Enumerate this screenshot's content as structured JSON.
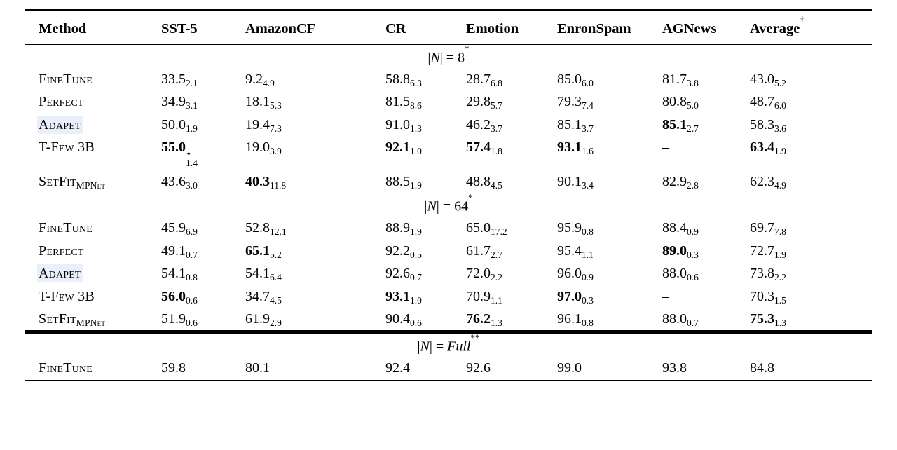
{
  "page": {
    "background": "#ffffff",
    "text_color": "#000000",
    "link_highlight_color": "#e9effb"
  },
  "table": {
    "columns": [
      {
        "label": "Method",
        "sup": ""
      },
      {
        "label": "SST-5",
        "sup": ""
      },
      {
        "label": "AmazonCF",
        "sup": ""
      },
      {
        "label": "CR",
        "sup": ""
      },
      {
        "label": "Emotion",
        "sup": ""
      },
      {
        "label": "EnronSpam",
        "sup": ""
      },
      {
        "label": "AGNews",
        "sup": ""
      },
      {
        "label": "Average",
        "sup": "†"
      }
    ],
    "sections": [
      {
        "header": {
          "open": "|",
          "symbol": "N",
          "close": "| = ",
          "value": "8",
          "value_italic": false,
          "sup": "*"
        },
        "rows": [
          {
            "method": {
              "name": "FineTune",
              "sub": "",
              "highlight": false
            },
            "cells": [
              {
                "v": "33.5",
                "sub": "2.1",
                "b": false
              },
              {
                "v": "9.2",
                "sub": "4.9",
                "b": false
              },
              {
                "v": "58.8",
                "sub": "6.3",
                "b": false
              },
              {
                "v": "28.7",
                "sub": "6.8",
                "b": false
              },
              {
                "v": "85.0",
                "sub": "6.0",
                "b": false
              },
              {
                "v": "81.7",
                "sub": "3.8",
                "b": false
              },
              {
                "v": "43.0",
                "sub": "5.2",
                "b": false
              }
            ]
          },
          {
            "method": {
              "name": "Perfect",
              "sub": "",
              "highlight": false
            },
            "cells": [
              {
                "v": "34.9",
                "sub": "3.1",
                "b": false
              },
              {
                "v": "18.1",
                "sub": "5.3",
                "b": false
              },
              {
                "v": "81.5",
                "sub": "8.6",
                "b": false
              },
              {
                "v": "29.8",
                "sub": "5.7",
                "b": false
              },
              {
                "v": "79.3",
                "sub": "7.4",
                "b": false
              },
              {
                "v": "80.8",
                "sub": "5.0",
                "b": false
              },
              {
                "v": "48.7",
                "sub": "6.0",
                "b": false
              }
            ]
          },
          {
            "method": {
              "name": "Adapet",
              "sub": "",
              "highlight": true
            },
            "cells": [
              {
                "v": "50.0",
                "sub": "1.9",
                "b": false
              },
              {
                "v": "19.4",
                "sub": "7.3",
                "b": false
              },
              {
                "v": "91.0",
                "sub": "1.3",
                "b": false
              },
              {
                "v": "46.2",
                "sub": "3.7",
                "b": false
              },
              {
                "v": "85.1",
                "sub": "3.7",
                "b": false
              },
              {
                "v": "85.1",
                "sub": "2.7",
                "b": true
              },
              {
                "v": "58.3",
                "sub": "3.6",
                "b": false
              }
            ]
          },
          {
            "method": {
              "name": "T-Few 3B",
              "sub": "",
              "highlight": false
            },
            "cells": [
              {
                "v": "55.0",
                "sub": "1.4",
                "sup": "⋆",
                "b": true
              },
              {
                "v": "19.0",
                "sub": "3.9",
                "b": false
              },
              {
                "v": "92.1",
                "sub": "1.0",
                "b": true
              },
              {
                "v": "57.4",
                "sub": "1.8",
                "b": true
              },
              {
                "v": "93.1",
                "sub": "1.6",
                "b": true
              },
              {
                "v": "–",
                "sub": "",
                "b": false
              },
              {
                "v": "63.4",
                "sub": "1.9",
                "b": true
              }
            ]
          },
          {
            "method": {
              "name": "SetFit",
              "sub": "MPNet",
              "highlight": false
            },
            "cells": [
              {
                "v": "43.6",
                "sub": "3.0",
                "b": false
              },
              {
                "v": "40.3",
                "sub": "11.8",
                "b": true
              },
              {
                "v": "88.5",
                "sub": "1.9",
                "b": false
              },
              {
                "v": "48.8",
                "sub": "4.5",
                "b": false
              },
              {
                "v": "90.1",
                "sub": "3.4",
                "b": false
              },
              {
                "v": "82.9",
                "sub": "2.8",
                "b": false
              },
              {
                "v": "62.3",
                "sub": "4.9",
                "b": false
              }
            ]
          }
        ]
      },
      {
        "header": {
          "open": "|",
          "symbol": "N",
          "close": "| = ",
          "value": "64",
          "value_italic": false,
          "sup": "*"
        },
        "rows": [
          {
            "method": {
              "name": "FineTune",
              "sub": "",
              "highlight": false
            },
            "cells": [
              {
                "v": "45.9",
                "sub": "6.9",
                "b": false
              },
              {
                "v": "52.8",
                "sub": "12.1",
                "b": false
              },
              {
                "v": "88.9",
                "sub": "1.9",
                "b": false
              },
              {
                "v": "65.0",
                "sub": "17.2",
                "b": false
              },
              {
                "v": "95.9",
                "sub": "0.8",
                "b": false
              },
              {
                "v": "88.4",
                "sub": "0.9",
                "b": false
              },
              {
                "v": "69.7",
                "sub": "7.8",
                "b": false
              }
            ]
          },
          {
            "method": {
              "name": "Perfect",
              "sub": "",
              "highlight": false
            },
            "cells": [
              {
                "v": "49.1",
                "sub": "0.7",
                "b": false
              },
              {
                "v": "65.1",
                "sub": "5.2",
                "b": true
              },
              {
                "v": "92.2",
                "sub": "0.5",
                "b": false
              },
              {
                "v": "61.7",
                "sub": "2.7",
                "b": false
              },
              {
                "v": "95.4",
                "sub": "1.1",
                "b": false
              },
              {
                "v": "89.0",
                "sub": "0.3",
                "b": true
              },
              {
                "v": "72.7",
                "sub": "1.9",
                "b": false
              }
            ]
          },
          {
            "method": {
              "name": "Adapet",
              "sub": "",
              "highlight": true
            },
            "cells": [
              {
                "v": "54.1",
                "sub": "0.8",
                "b": false
              },
              {
                "v": "54.1",
                "sub": "6.4",
                "b": false
              },
              {
                "v": "92.6",
                "sub": "0.7",
                "b": false
              },
              {
                "v": "72.0",
                "sub": "2.2",
                "b": false
              },
              {
                "v": "96.0",
                "sub": "0.9",
                "b": false
              },
              {
                "v": "88.0",
                "sub": "0.6",
                "b": false
              },
              {
                "v": "73.8",
                "sub": "2.2",
                "b": false
              }
            ]
          },
          {
            "method": {
              "name": "T-Few 3B",
              "sub": "",
              "highlight": false
            },
            "cells": [
              {
                "v": "56.0",
                "sub": "0.6",
                "b": true
              },
              {
                "v": "34.7",
                "sub": "4.5",
                "b": false
              },
              {
                "v": "93.1",
                "sub": "1.0",
                "b": true
              },
              {
                "v": "70.9",
                "sub": "1.1",
                "b": false
              },
              {
                "v": "97.0",
                "sub": "0.3",
                "b": true
              },
              {
                "v": "–",
                "sub": "",
                "b": false
              },
              {
                "v": "70.3",
                "sub": "1.5",
                "b": false
              }
            ]
          },
          {
            "method": {
              "name": "SetFit",
              "sub": "MPNet",
              "highlight": false
            },
            "cells": [
              {
                "v": "51.9",
                "sub": "0.6",
                "b": false
              },
              {
                "v": "61.9",
                "sub": "2.9",
                "b": false
              },
              {
                "v": "90.4",
                "sub": "0.6",
                "b": false
              },
              {
                "v": "76.2",
                "sub": "1.3",
                "b": true
              },
              {
                "v": "96.1",
                "sub": "0.8",
                "b": false
              },
              {
                "v": "88.0",
                "sub": "0.7",
                "b": false
              },
              {
                "v": "75.3",
                "sub": "1.3",
                "b": true
              }
            ]
          }
        ]
      },
      {
        "header": {
          "open": "|",
          "symbol": "N",
          "close": "| = ",
          "value": "Full",
          "value_italic": true,
          "sup": "**"
        },
        "rows": [
          {
            "method": {
              "name": "FineTune",
              "sub": "",
              "highlight": false
            },
            "cells": [
              {
                "v": "59.8",
                "sub": "",
                "b": false
              },
              {
                "v": "80.1",
                "sub": "",
                "b": false
              },
              {
                "v": "92.4",
                "sub": "",
                "b": false
              },
              {
                "v": "92.6",
                "sub": "",
                "b": false
              },
              {
                "v": "99.0",
                "sub": "",
                "b": false
              },
              {
                "v": "93.8",
                "sub": "",
                "b": false
              },
              {
                "v": "84.8",
                "sub": "",
                "b": false
              }
            ]
          }
        ]
      }
    ]
  }
}
